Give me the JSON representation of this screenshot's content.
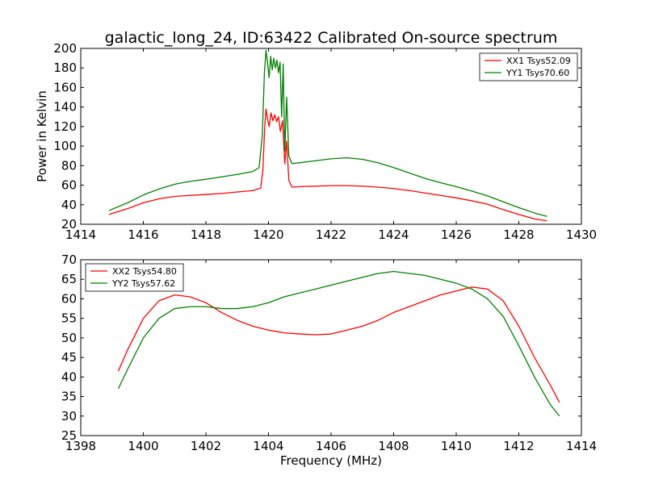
{
  "chart_data": [
    {
      "type": "line",
      "title": "galactic_long_24, ID:63422 Calibrated On-source spectrum",
      "xlabel": "",
      "ylabel": "Power in Kelvin",
      "xlim": [
        1414,
        1430
      ],
      "ylim": [
        20,
        200
      ],
      "xticks": [
        1414,
        1416,
        1418,
        1420,
        1422,
        1424,
        1426,
        1428,
        1430
      ],
      "yticks": [
        20,
        40,
        60,
        80,
        100,
        120,
        140,
        160,
        180,
        200
      ],
      "grid": false,
      "legend_position": "top-right",
      "series": [
        {
          "name": "XX1 Tsys52.09",
          "color": "#ff0000",
          "x": [
            1414.9,
            1415.5,
            1416.0,
            1416.5,
            1417.0,
            1417.5,
            1418.0,
            1418.5,
            1419.0,
            1419.5,
            1419.75,
            1419.82,
            1419.88,
            1419.92,
            1419.97,
            1420.02,
            1420.08,
            1420.14,
            1420.2,
            1420.26,
            1420.32,
            1420.38,
            1420.45,
            1420.52,
            1420.58,
            1420.65,
            1420.75,
            1421.0,
            1421.5,
            1422.0,
            1422.5,
            1423.0,
            1423.5,
            1424.0,
            1424.5,
            1425.0,
            1425.5,
            1426.0,
            1426.5,
            1427.0,
            1427.5,
            1428.0,
            1428.5,
            1428.9
          ],
          "y": [
            30,
            36,
            42,
            46,
            48.5,
            49.5,
            50.5,
            51.5,
            53,
            54.5,
            57,
            75,
            120,
            138,
            128,
            120,
            134,
            126,
            132,
            125,
            130,
            115,
            126,
            82,
            105,
            65,
            58,
            58.5,
            59,
            59.5,
            59.5,
            59,
            58,
            56.5,
            54.5,
            52,
            49.5,
            47,
            44,
            40.5,
            35,
            30,
            25.5,
            23.5
          ]
        },
        {
          "name": "YY1 Tsys70.60",
          "color": "#008000",
          "x": [
            1414.9,
            1415.5,
            1416.0,
            1416.5,
            1417.0,
            1417.5,
            1418.0,
            1418.5,
            1419.0,
            1419.5,
            1419.7,
            1419.8,
            1419.87,
            1419.92,
            1419.97,
            1420.02,
            1420.07,
            1420.12,
            1420.17,
            1420.22,
            1420.27,
            1420.32,
            1420.37,
            1420.42,
            1420.47,
            1420.52,
            1420.58,
            1420.65,
            1420.75,
            1421.0,
            1421.5,
            1422.0,
            1422.5,
            1423.0,
            1423.5,
            1424.0,
            1424.5,
            1425.0,
            1425.5,
            1426.0,
            1426.5,
            1427.0,
            1427.5,
            1428.0,
            1428.5,
            1428.9
          ],
          "y": [
            34,
            42,
            50,
            56,
            61,
            64,
            66,
            68.5,
            71,
            74,
            78,
            110,
            175,
            198,
            185,
            170,
            192,
            178,
            190,
            180,
            188,
            175,
            186,
            130,
            184,
            95,
            150,
            90,
            82,
            83,
            85,
            87,
            88,
            86.5,
            83,
            78,
            72.5,
            67,
            62.5,
            58.5,
            54,
            49,
            43,
            37,
            31.5,
            28
          ]
        }
      ]
    },
    {
      "type": "line",
      "title": "",
      "xlabel": "Frequency (MHz)",
      "ylabel": "",
      "xlim": [
        1398,
        1414
      ],
      "ylim": [
        25,
        70
      ],
      "xticks": [
        1398,
        1400,
        1402,
        1404,
        1406,
        1408,
        1410,
        1412,
        1414
      ],
      "yticks": [
        25,
        30,
        35,
        40,
        45,
        50,
        55,
        60,
        65,
        70
      ],
      "grid": false,
      "legend_position": "top-left",
      "series": [
        {
          "name": "XX2 Tsys54.80",
          "color": "#ff0000",
          "x": [
            1399.2,
            1399.5,
            1400.0,
            1400.5,
            1401.0,
            1401.5,
            1402.0,
            1402.5,
            1403.0,
            1403.5,
            1404.0,
            1404.5,
            1405.0,
            1405.5,
            1406.0,
            1406.5,
            1407.0,
            1407.5,
            1408.0,
            1408.5,
            1409.0,
            1409.5,
            1410.0,
            1410.5,
            1411.0,
            1411.5,
            1412.0,
            1412.5,
            1413.0,
            1413.3
          ],
          "y": [
            41.5,
            47,
            55,
            59.5,
            61,
            60.5,
            59,
            56.5,
            54.5,
            53,
            52,
            51.3,
            51,
            50.8,
            51,
            52,
            53,
            54.5,
            56.5,
            58,
            59.5,
            61,
            62,
            63,
            62.5,
            59.5,
            53,
            45,
            38,
            33.5
          ]
        },
        {
          "name": "YY2 Tsys57.62",
          "color": "#008000",
          "x": [
            1399.2,
            1399.5,
            1400.0,
            1400.5,
            1401.0,
            1401.5,
            1402.0,
            1402.5,
            1403.0,
            1403.5,
            1404.0,
            1404.5,
            1405.0,
            1405.5,
            1406.0,
            1406.5,
            1407.0,
            1407.5,
            1408.0,
            1408.5,
            1409.0,
            1409.5,
            1410.0,
            1410.5,
            1411.0,
            1411.5,
            1412.0,
            1412.5,
            1413.0,
            1413.3
          ],
          "y": [
            37,
            42,
            50,
            55,
            57.5,
            58,
            58,
            57.5,
            57.5,
            58,
            59,
            60.5,
            61.5,
            62.5,
            63.5,
            64.5,
            65.5,
            66.5,
            67,
            66.5,
            66,
            65,
            64,
            62.5,
            60,
            55.5,
            48,
            40,
            33,
            30
          ]
        }
      ]
    }
  ]
}
